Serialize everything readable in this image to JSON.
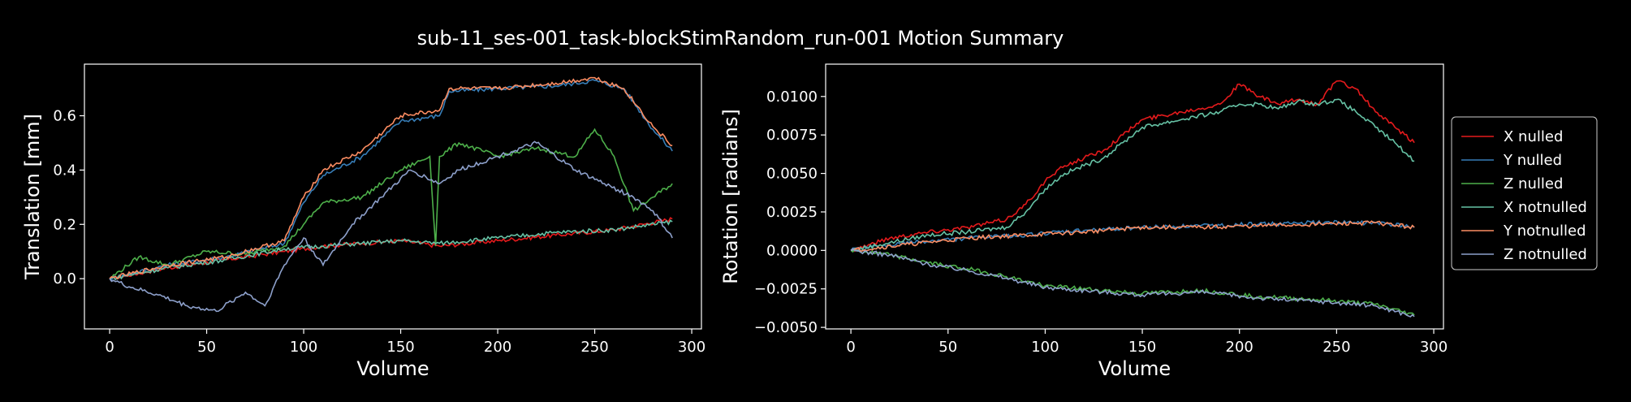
{
  "figure": {
    "title": "sub-11_ses-001_task-blockStimRandom_run-001 Motion Summary"
  },
  "legend": {
    "placement": "right",
    "entries": [
      "X nulled",
      "Y nulled",
      "Z nulled",
      "X notnulled",
      "Y notnulled",
      "Z notnulled"
    ]
  },
  "colors": {
    "background": "#000000",
    "axes": "#ffffff",
    "X nulled": "#e41a1c",
    "Y nulled": "#377eb8",
    "Z nulled": "#4daf4a",
    "X notnulled": "#66c2a5",
    "Y notnulled": "#fc8d62",
    "Z notnulled": "#8da0cb"
  },
  "chart_data": [
    {
      "type": "line",
      "xlabel": "Volume",
      "ylabel": "Translation [mm]",
      "xlim": [
        -13,
        305
      ],
      "ylim": [
        -0.185,
        0.79
      ],
      "xticks": [
        0,
        50,
        100,
        150,
        200,
        250,
        300
      ],
      "yticks": [
        0.0,
        0.2,
        0.4,
        0.6
      ],
      "ytick_labels": [
        "0.0",
        "0.2",
        "0.4",
        "0.6"
      ],
      "grid": false,
      "series": [
        {
          "name": "X nulled",
          "x": [
            0,
            30,
            60,
            90,
            110,
            130,
            150,
            170,
            200,
            230,
            260,
            290
          ],
          "values": [
            0.0,
            0.04,
            0.07,
            0.1,
            0.12,
            0.13,
            0.14,
            0.12,
            0.14,
            0.16,
            0.18,
            0.22
          ]
        },
        {
          "name": "Y nulled",
          "x": [
            0,
            30,
            60,
            90,
            100,
            110,
            130,
            150,
            170,
            175,
            200,
            230,
            250,
            265,
            280,
            290
          ],
          "values": [
            0.0,
            0.05,
            0.08,
            0.13,
            0.28,
            0.38,
            0.45,
            0.58,
            0.6,
            0.69,
            0.7,
            0.71,
            0.73,
            0.7,
            0.55,
            0.47
          ]
        },
        {
          "name": "Z nulled",
          "x": [
            0,
            15,
            30,
            50,
            70,
            90,
            100,
            110,
            130,
            150,
            165,
            168,
            170,
            180,
            200,
            220,
            240,
            250,
            260,
            270,
            280,
            290
          ],
          "values": [
            0.0,
            0.08,
            0.05,
            0.1,
            0.09,
            0.12,
            0.2,
            0.28,
            0.3,
            0.4,
            0.45,
            0.12,
            0.45,
            0.5,
            0.45,
            0.48,
            0.45,
            0.55,
            0.45,
            0.25,
            0.3,
            0.35
          ]
        },
        {
          "name": "X notnulled",
          "x": [
            0,
            30,
            60,
            90,
            110,
            130,
            150,
            170,
            200,
            230,
            260,
            290
          ],
          "values": [
            0.0,
            0.04,
            0.07,
            0.11,
            0.12,
            0.13,
            0.14,
            0.13,
            0.15,
            0.17,
            0.18,
            0.21
          ]
        },
        {
          "name": "Y notnulled",
          "x": [
            0,
            30,
            60,
            90,
            100,
            110,
            130,
            150,
            170,
            175,
            200,
            230,
            250,
            265,
            280,
            290
          ],
          "values": [
            0.0,
            0.05,
            0.08,
            0.14,
            0.3,
            0.4,
            0.47,
            0.6,
            0.62,
            0.7,
            0.7,
            0.72,
            0.74,
            0.7,
            0.56,
            0.49
          ]
        },
        {
          "name": "Z notnulled",
          "x": [
            0,
            10,
            25,
            40,
            55,
            70,
            80,
            90,
            100,
            110,
            125,
            140,
            155,
            170,
            180,
            200,
            220,
            240,
            255,
            270,
            280,
            290
          ],
          "values": [
            0.0,
            -0.03,
            -0.06,
            -0.1,
            -0.12,
            -0.05,
            -0.1,
            0.05,
            0.15,
            0.05,
            0.2,
            0.3,
            0.4,
            0.35,
            0.4,
            0.45,
            0.5,
            0.4,
            0.35,
            0.3,
            0.25,
            0.15
          ]
        }
      ]
    },
    {
      "type": "line",
      "xlabel": "Volume",
      "ylabel": "Rotation [radians]",
      "xlim": [
        -13,
        305
      ],
      "ylim": [
        -0.0051,
        0.0121
      ],
      "xticks": [
        0,
        50,
        100,
        150,
        200,
        250,
        300
      ],
      "yticks": [
        -0.005,
        -0.0025,
        0.0,
        0.0025,
        0.005,
        0.0075,
        0.01
      ],
      "ytick_labels": [
        "−0.0050",
        "−0.0025",
        "0.0000",
        "0.0025",
        "0.0050",
        "0.0075",
        "0.0100"
      ],
      "grid": false,
      "series": [
        {
          "name": "X nulled",
          "x": [
            0,
            20,
            40,
            60,
            80,
            90,
            100,
            110,
            120,
            130,
            140,
            150,
            170,
            190,
            200,
            210,
            220,
            230,
            240,
            250,
            260,
            270,
            280,
            290
          ],
          "values": [
            0.0,
            0.0008,
            0.0012,
            0.0015,
            0.002,
            0.003,
            0.0045,
            0.0055,
            0.006,
            0.0065,
            0.0075,
            0.0085,
            0.009,
            0.0095,
            0.0108,
            0.01,
            0.0095,
            0.0098,
            0.0095,
            0.011,
            0.0105,
            0.009,
            0.008,
            0.007
          ]
        },
        {
          "name": "Y nulled",
          "x": [
            0,
            30,
            60,
            90,
            120,
            150,
            180,
            210,
            240,
            270,
            290
          ],
          "values": [
            0.0,
            0.0005,
            0.0008,
            0.001,
            0.0013,
            0.0015,
            0.0016,
            0.0017,
            0.0018,
            0.0018,
            0.0015
          ]
        },
        {
          "name": "Z nulled",
          "x": [
            0,
            20,
            40,
            60,
            80,
            100,
            130,
            150,
            180,
            210,
            240,
            270,
            290
          ],
          "values": [
            0.0,
            -0.0003,
            -0.0008,
            -0.0012,
            -0.0017,
            -0.0023,
            -0.0026,
            -0.0028,
            -0.0026,
            -0.003,
            -0.0032,
            -0.0035,
            -0.0042
          ]
        },
        {
          "name": "X notnulled",
          "x": [
            0,
            20,
            40,
            60,
            80,
            90,
            100,
            110,
            120,
            130,
            140,
            150,
            170,
            190,
            200,
            210,
            220,
            230,
            240,
            250,
            260,
            270,
            280,
            290
          ],
          "values": [
            0.0,
            0.0005,
            0.001,
            0.0012,
            0.0015,
            0.0025,
            0.004,
            0.005,
            0.0055,
            0.006,
            0.007,
            0.008,
            0.0085,
            0.009,
            0.0095,
            0.0095,
            0.0092,
            0.0097,
            0.0095,
            0.0098,
            0.009,
            0.008,
            0.007,
            0.0058
          ]
        },
        {
          "name": "Y notnulled",
          "x": [
            0,
            30,
            60,
            90,
            120,
            150,
            180,
            210,
            240,
            270,
            290
          ],
          "values": [
            0.0,
            0.0004,
            0.0008,
            0.001,
            0.0012,
            0.0015,
            0.0015,
            0.0016,
            0.0017,
            0.0018,
            0.0015
          ]
        },
        {
          "name": "Z notnulled",
          "x": [
            0,
            20,
            40,
            60,
            80,
            100,
            130,
            150,
            180,
            210,
            240,
            270,
            290
          ],
          "values": [
            0.0,
            -0.0003,
            -0.0009,
            -0.0013,
            -0.0018,
            -0.0024,
            -0.0027,
            -0.0029,
            -0.0027,
            -0.0031,
            -0.0033,
            -0.0036,
            -0.0043
          ]
        }
      ]
    }
  ]
}
